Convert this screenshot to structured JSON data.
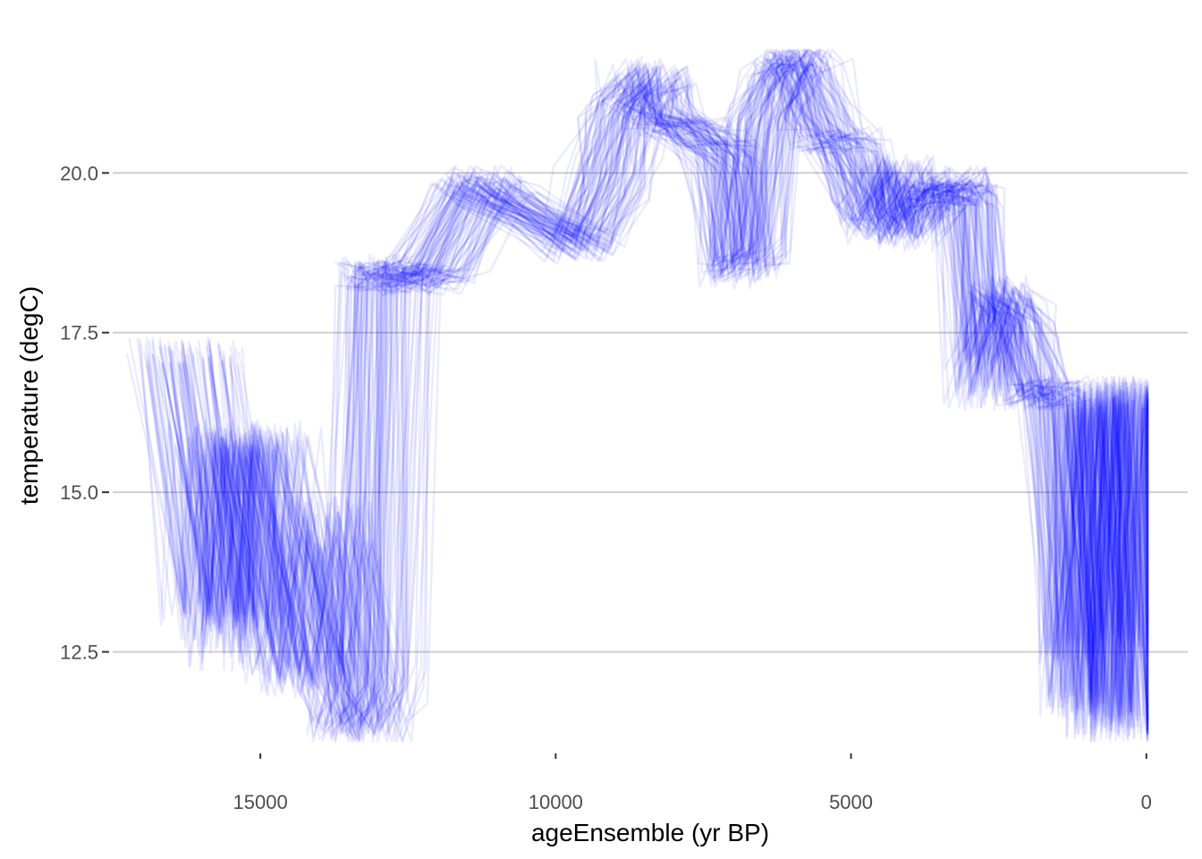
{
  "chart_data": {
    "type": "line",
    "xlabel": "ageEnsemble (yr BP)",
    "ylabel": "temperature (degC)",
    "xlim": [
      17500,
      -700
    ],
    "ylim": [
      11.05,
      21.98
    ],
    "x_ticks": [
      15000,
      10000,
      5000,
      0
    ],
    "y_ticks": [
      12.5,
      15.0,
      17.5,
      20.0
    ],
    "x_tick_labels": [
      "15000",
      "10000",
      "5000",
      "0"
    ],
    "y_tick_labels": [
      "12.5",
      "15.0",
      "17.5",
      "20.0"
    ],
    "grid": "horizontal major only",
    "series_style": {
      "color": "#0000ff",
      "opacity": 0.08,
      "ensemble_members": 100
    },
    "representative_series": [
      {
        "x": [
          16350,
          15800,
          15650,
          15350,
          15200,
          14400,
          14000,
          13600,
          13450,
          13250,
          13000,
          12900,
          12800,
          12200,
          11400,
          11200,
          9700,
          9200,
          8900,
          8500,
          8400,
          7800,
          7200,
          7000,
          6800,
          6600,
          6300,
          6000,
          5800,
          5500,
          5000,
          4700,
          4300,
          4000,
          3700,
          3400,
          3100,
          3000,
          2800,
          2500,
          2200,
          1900,
          1600,
          1300,
          1000,
          800,
          600,
          400,
          200,
          0
        ],
        "y": [
          17.2,
          12.9,
          15.9,
          12.9,
          15.9,
          12.0,
          14.2,
          12.2,
          11.3,
          11.8,
          18.5,
          18.4,
          18.4,
          18.3,
          19.9,
          19.8,
          18.8,
          20.1,
          21.1,
          21.6,
          21.0,
          20.6,
          20.3,
          18.4,
          18.7,
          20.8,
          21.4,
          21.9,
          21.6,
          20.5,
          20.5,
          19.3,
          20.1,
          19.0,
          19.7,
          19.7,
          19.9,
          19.6,
          16.5,
          18.2,
          17.8,
          16.5,
          16.6,
          12.5,
          16.5,
          11.3,
          16.6,
          11.4,
          16.6,
          11.3
        ]
      },
      {
        "x": [
          16200,
          15600,
          15500,
          15300,
          15100,
          14200,
          13900,
          13500,
          13300,
          13050,
          12900,
          12700,
          12100,
          11300,
          11000,
          9500,
          9000,
          8800,
          8300,
          8200,
          7600,
          7100,
          6900,
          6700,
          6400,
          6100,
          5900,
          5600,
          5200,
          4800,
          4500,
          4100,
          3900,
          3600,
          3200,
          2950,
          2750,
          2450,
          2100,
          1800,
          1500,
          1200,
          900,
          700,
          500,
          300,
          100
        ],
        "y": [
          17.2,
          13.2,
          15.8,
          12.4,
          15.7,
          12.1,
          14.8,
          11.9,
          11.2,
          12.1,
          18.4,
          18.3,
          18.5,
          19.8,
          19.7,
          18.9,
          19.8,
          21.0,
          21.5,
          20.8,
          20.7,
          20.1,
          18.5,
          18.8,
          20.9,
          21.7,
          21.8,
          21.0,
          20.4,
          19.5,
          19.1,
          20.0,
          19.2,
          19.6,
          19.7,
          19.6,
          17.0,
          18.0,
          17.6,
          16.5,
          16.6,
          11.7,
          16.4,
          11.6,
          16.6,
          12.6,
          16.5
        ]
      }
    ]
  }
}
